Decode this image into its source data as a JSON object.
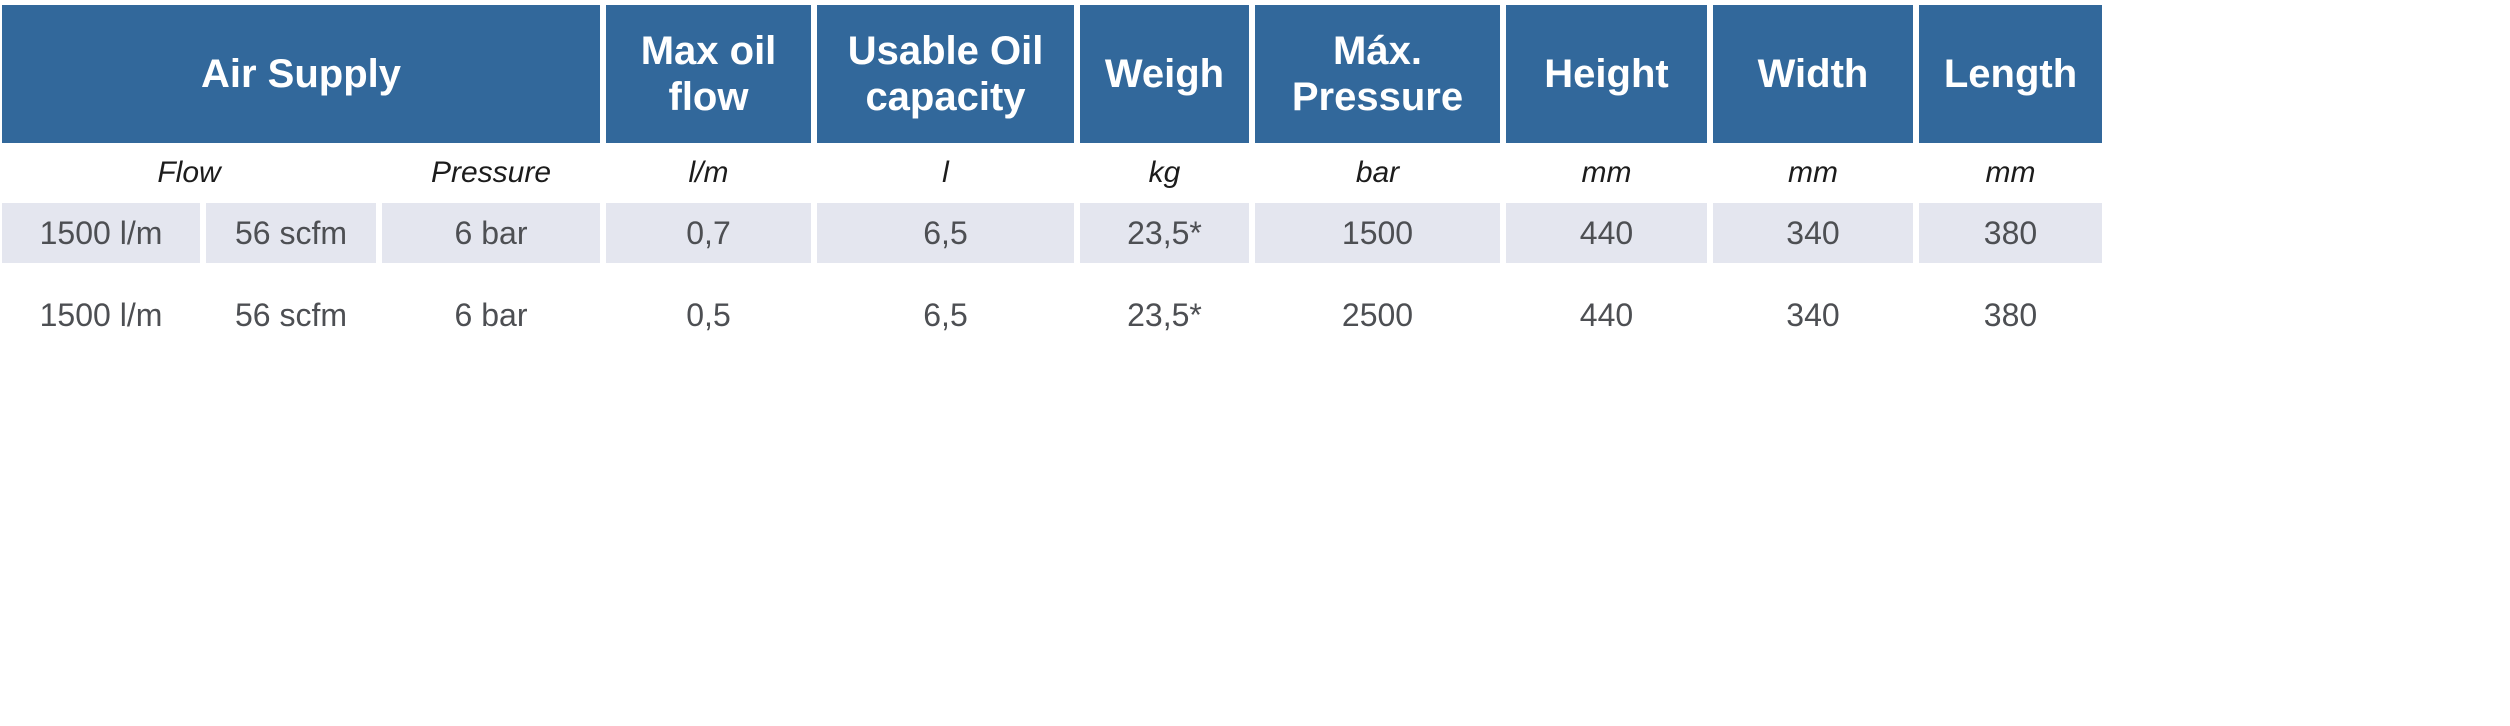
{
  "colors": {
    "header_bg": "#32689b",
    "header_text": "#ffffff",
    "shaded_row_bg": "#e4e6ef",
    "subheader_text": "#1c1c1c",
    "data_text": "#4d4f53"
  },
  "table": {
    "top_header": {
      "air_supply": "Air Supply",
      "max_oil_flow": "Max oil flow",
      "usable_oil_capacity": "Usable Oil capacity",
      "weigh": "Weigh",
      "max_pressure": "Máx. Pressure",
      "height": "Height",
      "width": "Width",
      "length": "Length"
    },
    "subheader": {
      "flow": "Flow",
      "pressure": "Pressure",
      "unit_max_oil_flow": "l/m",
      "unit_usable_oil_capacity": "l",
      "unit_weigh": "kg",
      "unit_max_pressure": "bar",
      "unit_height": "mm",
      "unit_width": "mm",
      "unit_length": "mm"
    },
    "rows": [
      [
        "1500 l/m",
        "56 scfm",
        "6 bar",
        "0,7",
        "6,5",
        "23,5*",
        "1500",
        "440",
        "340",
        "380"
      ],
      [
        "1500 l/m",
        "56 scfm",
        "6 bar",
        "0,5",
        "6,5",
        "23,5*",
        "2500",
        "440",
        "340",
        "380"
      ]
    ]
  }
}
